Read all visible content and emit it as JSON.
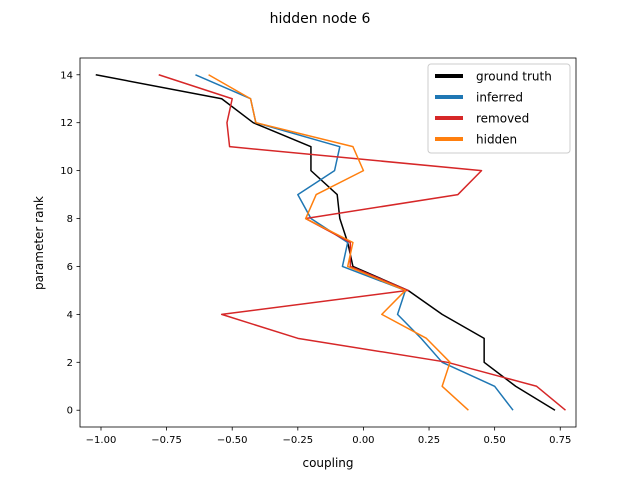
{
  "chart_data": {
    "type": "line",
    "title": "hidden node 6",
    "xlabel": "coupling",
    "ylabel": "parameter rank",
    "xlim": [
      -1.08,
      0.81
    ],
    "ylim": [
      -0.7,
      14.7
    ],
    "xticks": [
      -1.0,
      -0.75,
      -0.5,
      -0.25,
      0.0,
      0.25,
      0.5,
      0.75
    ],
    "xtick_labels": [
      "−1.00",
      "−0.75",
      "−0.50",
      "−0.25",
      "0.00",
      "0.25",
      "0.50",
      "0.75"
    ],
    "yticks": [
      0,
      2,
      4,
      6,
      8,
      10,
      12,
      14
    ],
    "ytick_labels": [
      "0",
      "2",
      "4",
      "6",
      "8",
      "10",
      "12",
      "14"
    ],
    "grid": false,
    "legend_position": "top-right",
    "y": [
      0,
      1,
      2,
      3,
      4,
      5,
      6,
      7,
      8,
      9,
      10,
      11,
      12,
      13,
      14
    ],
    "series": [
      {
        "name": "ground truth",
        "color": "#000000",
        "x": [
          0.73,
          0.58,
          0.46,
          0.46,
          0.3,
          0.17,
          -0.04,
          -0.06,
          -0.09,
          -0.1,
          -0.2,
          -0.2,
          -0.42,
          -0.54,
          -1.02
        ]
      },
      {
        "name": "inferred",
        "color": "#1f77b4",
        "x": [
          0.57,
          0.5,
          0.3,
          0.22,
          0.13,
          0.16,
          -0.08,
          -0.06,
          -0.2,
          -0.25,
          -0.11,
          -0.09,
          -0.41,
          -0.43,
          -0.64
        ]
      },
      {
        "name": "removed",
        "color": "#d62728",
        "x": [
          0.77,
          0.66,
          0.32,
          -0.25,
          -0.54,
          0.17,
          -0.05,
          -0.05,
          -0.22,
          0.36,
          0.45,
          -0.51,
          -0.52,
          -0.5,
          -0.78
        ]
      },
      {
        "name": "hidden",
        "color": "#ff7f0e",
        "x": [
          0.4,
          0.3,
          0.33,
          0.24,
          0.07,
          0.16,
          -0.06,
          -0.04,
          -0.22,
          -0.18,
          0.0,
          -0.04,
          -0.41,
          -0.43,
          -0.59
        ]
      }
    ]
  }
}
